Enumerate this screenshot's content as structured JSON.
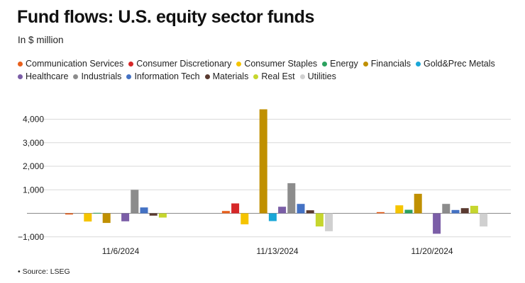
{
  "chart_data": {
    "type": "bar",
    "title": "Fund flows: U.S. equity sector funds",
    "subtitle": "In $ million",
    "categories": [
      "11/6/2024",
      "11/13/2024",
      "11/20/2024"
    ],
    "series": [
      {
        "name": "Communication Services",
        "color": "#e8601c",
        "values": [
          -50,
          100,
          50
        ]
      },
      {
        "name": "Consumer Discretionary",
        "color": "#d62728",
        "values": [
          0,
          420,
          0
        ]
      },
      {
        "name": "Consumer Staples",
        "color": "#f5c400",
        "values": [
          -350,
          -470,
          340
        ]
      },
      {
        "name": "Energy",
        "color": "#2ca25f",
        "values": [
          20,
          0,
          150
        ]
      },
      {
        "name": "Financials",
        "color": "#c09000",
        "values": [
          -410,
          4420,
          830
        ]
      },
      {
        "name": "Gold&Prec Metals",
        "color": "#1aa7d8",
        "values": [
          0,
          -330,
          0
        ]
      },
      {
        "name": "Healthcare",
        "color": "#7b5ea7",
        "values": [
          -340,
          280,
          -870
        ]
      },
      {
        "name": "Industrials",
        "color": "#8c8c8c",
        "values": [
          1000,
          1280,
          400
        ]
      },
      {
        "name": "Information Tech",
        "color": "#4472c4",
        "values": [
          250,
          400,
          140
        ]
      },
      {
        "name": "Materials",
        "color": "#5a3a30",
        "values": [
          -100,
          130,
          220
        ]
      },
      {
        "name": "Real Est",
        "color": "#c6d62e",
        "values": [
          -180,
          -560,
          320
        ]
      },
      {
        "name": "Utilities",
        "color": "#d0d0d0",
        "values": [
          0,
          -760,
          -560
        ]
      }
    ],
    "yticks": [
      4000,
      3000,
      2000,
      1000,
      0,
      -1000
    ],
    "ytick_labels": [
      "4,000",
      "3,000",
      "2,000",
      "1,000",
      "",
      "−1,000"
    ],
    "ylim": [
      -1100,
      4500
    ],
    "xlabel": "",
    "ylabel": "",
    "grid": true,
    "legend_placement": "top"
  },
  "source": "• Source: LSEG"
}
